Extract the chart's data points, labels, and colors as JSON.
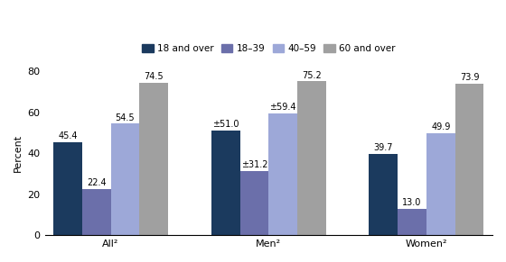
{
  "groups": [
    "All²",
    "Men²",
    "Women²"
  ],
  "series": [
    {
      "label": "18 and over",
      "values": [
        45.4,
        51.0,
        39.7
      ],
      "color": "#1b3a5e",
      "annotations": [
        "45.4",
        "±51.0",
        "39.7"
      ]
    },
    {
      "label": "18–39",
      "values": [
        22.4,
        31.2,
        13.0
      ],
      "color": "#6b6faa",
      "annotations": [
        "22.4",
        "±31.2",
        "13.0"
      ]
    },
    {
      "label": "40–59",
      "values": [
        54.5,
        59.4,
        49.9
      ],
      "color": "#9da8d8",
      "annotations": [
        "54.5",
        "±59.4",
        "49.9"
      ]
    },
    {
      "label": "60 and over",
      "values": [
        74.5,
        75.2,
        73.9
      ],
      "color": "#a0a0a0",
      "annotations": [
        "74.5",
        "75.2",
        "73.9"
      ]
    }
  ],
  "ylabel": "Percent",
  "ylim": [
    0,
    80
  ],
  "yticks": [
    0,
    20,
    40,
    60,
    80
  ],
  "bar_width": 0.2,
  "group_centers": [
    0.55,
    1.65,
    2.75
  ],
  "legend_fontsize": 7.5,
  "tick_fontsize": 8,
  "annot_fontsize": 7.0
}
